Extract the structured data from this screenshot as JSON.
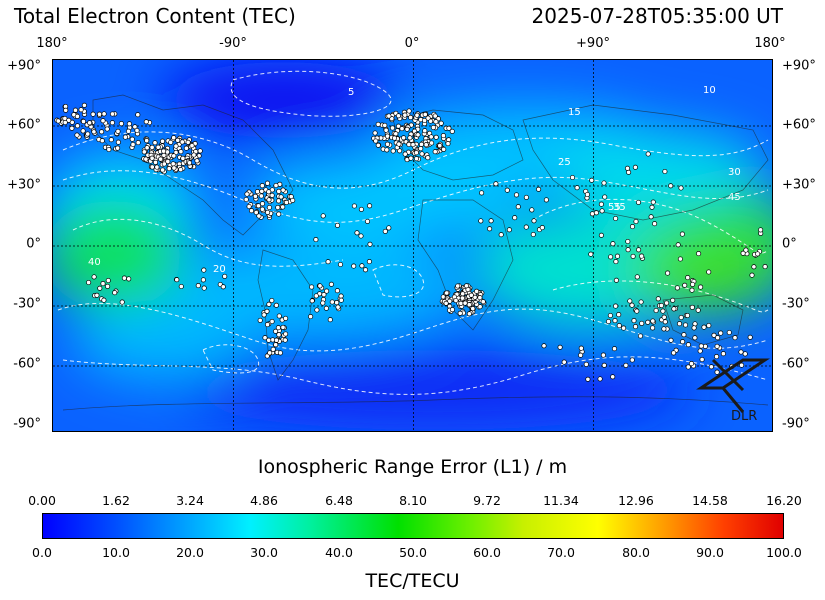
{
  "header": {
    "title": "Total Electron Content (TEC)",
    "timestamp": "2025-07-28T05:35:00 UT"
  },
  "map": {
    "lon_labels": [
      "180°",
      "-90°",
      "0°",
      "+90°",
      "180°"
    ],
    "lat_labels": [
      "+90°",
      "+60°",
      "+30°",
      "0°",
      "-30°",
      "-60°",
      "-90°"
    ],
    "contour_labels": [
      "5",
      "10",
      "15",
      "20",
      "25",
      "30",
      "35",
      "40",
      "45",
      "55"
    ],
    "logo_text": "DLR",
    "colors": {
      "low": "#0000ff",
      "mid": "#00e0ff",
      "high": "#00e000",
      "contour": "#ffffff",
      "station": "#ffffff",
      "coast": "#000000"
    }
  },
  "range_axis": {
    "label": "Ionospheric Range Error (L1) / m",
    "ticks": [
      "0.00",
      "1.62",
      "3.24",
      "4.86",
      "6.48",
      "8.10",
      "9.72",
      "11.34",
      "12.96",
      "14.58",
      "16.20"
    ]
  },
  "tec_axis": {
    "label": "TEC/TECU",
    "ticks": [
      "0.0",
      "10.0",
      "20.0",
      "30.0",
      "40.0",
      "50.0",
      "60.0",
      "70.0",
      "80.0",
      "90.0",
      "100.0"
    ]
  }
}
